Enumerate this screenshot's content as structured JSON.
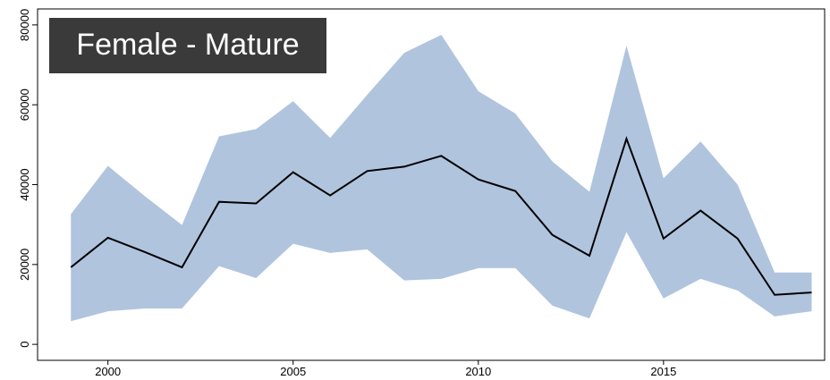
{
  "chart_data": {
    "type": "line",
    "title": "Female - Mature",
    "x": [
      1999,
      2000,
      2001,
      2002,
      2003,
      2004,
      2005,
      2006,
      2007,
      2008,
      2009,
      2010,
      2011,
      2012,
      2013,
      2014,
      2015,
      2016,
      2017,
      2018,
      2019
    ],
    "values": [
      19300,
      26700,
      23100,
      19300,
      35700,
      35300,
      43100,
      37300,
      43400,
      44500,
      47200,
      41300,
      38400,
      27400,
      22200,
      51500,
      26500,
      33500,
      26500,
      12400,
      13000
    ],
    "upper": [
      32600,
      44700,
      37100,
      29900,
      52100,
      53900,
      60900,
      51700,
      62500,
      73000,
      77500,
      63400,
      57800,
      45800,
      38200,
      74800,
      41600,
      50800,
      40000,
      18000,
      18000
    ],
    "lower": [
      5800,
      8300,
      9000,
      9000,
      19600,
      16600,
      25200,
      22900,
      23800,
      16000,
      16400,
      19100,
      19100,
      9700,
      6500,
      28100,
      11500,
      16400,
      13500,
      7000,
      8300
    ],
    "color": "#000000",
    "band_color": "#b0c4de",
    "xlim": [
      1998.1,
      2019.35
    ],
    "xticks": [
      2000,
      2005,
      2010,
      2015
    ],
    "ylim": [
      -4000,
      84000
    ],
    "yticks": [
      0,
      20000,
      40000,
      60000,
      80000
    ]
  }
}
